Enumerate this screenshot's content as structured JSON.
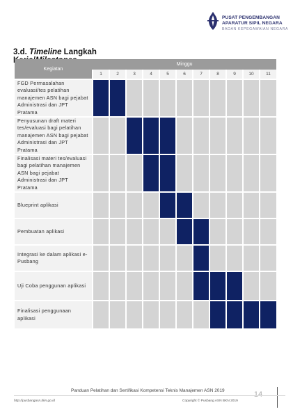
{
  "header": {
    "logo": {
      "line1": "PUSAT PENGEMBANGAN",
      "line2": "APARATUR SIPIL NEGARA",
      "line3": "BADAN KEPEGAWAIAN NEGARA",
      "icon": "bkn-emblem-icon"
    }
  },
  "section": {
    "prefix": "3.d. ",
    "italic": "Timeline",
    "line1_rest": " Langkah",
    "line2_plain": "Kerja/",
    "line2_italic": "Milestones"
  },
  "table": {
    "activity_header": "Kegiatan",
    "week_header": "Minggu",
    "weeks": [
      "1",
      "2",
      "3",
      "4",
      "5",
      "6",
      "7",
      "8",
      "9",
      "10",
      "11"
    ],
    "colors": {
      "active": "#0f2263",
      "inactive": "#d4d4d4",
      "header": "#9b9b9b",
      "label_bg": "#f2f2f2"
    },
    "rows": [
      {
        "label": "FGD Permasalahan evaluasi/tes pelatihan manajemen ASN bagi pejabat Administrasi dan JPT Pratama",
        "active": [
          1,
          2
        ]
      },
      {
        "label": "Penyusunan draft materi tes/evaluasi bagi pelatihan manajemen ASN bagi pejabat Administrasi dan JPT Pratama",
        "active": [
          3,
          4,
          5
        ]
      },
      {
        "label": "Finalisasi materi tes/evaluasi bagi pelatihan manajemen ASN bagi pejabat Administrasi dan JPT Pratama",
        "active": [
          4,
          5
        ]
      },
      {
        "label": "Blueprint aplikasi",
        "active": [
          5,
          6
        ]
      },
      {
        "label": "Pembuatan aplikasi",
        "active": [
          6,
          7
        ]
      },
      {
        "label": "Integrasi ke dalam aplikasi e-Pusbang",
        "active": [
          7
        ]
      },
      {
        "label": "Uji Coba penggunan aplikasi",
        "active": [
          7,
          8,
          9
        ]
      },
      {
        "label": "Finalisasi penggunaan aplikasi",
        "active": [
          8,
          9,
          10,
          11
        ]
      }
    ]
  },
  "footer": {
    "title": "Panduan Pelatihan dan Sertifikasi Kompetensi Teknis Manajemen ASN 2019",
    "page_number": "14",
    "website": "http://pusbangasn.bkn.go.id",
    "copyright": "Copyright © Pusbang ASN BKN 2019"
  }
}
